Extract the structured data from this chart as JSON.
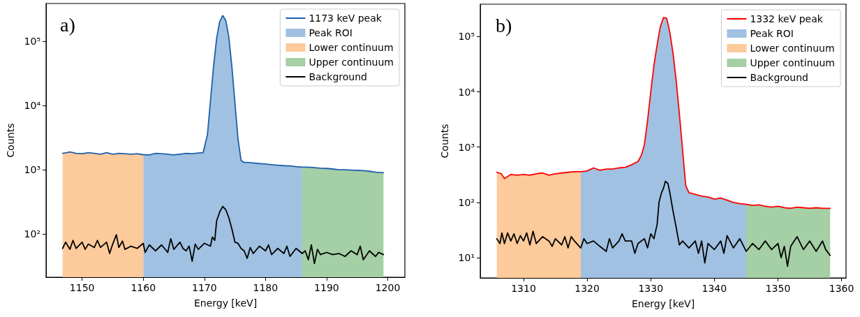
{
  "chart_data": [
    {
      "type": "line",
      "xlabel": "Energy [keV]",
      "ylabel": "Counts",
      "annotations": [
        "a)"
      ],
      "log": "y",
      "legend": "top right",
      "marker": "none",
      "xlim": [
        1144.1,
        1202.8
      ],
      "xticks": [
        1150,
        1160,
        1170,
        1180,
        1190,
        1200
      ],
      "ylim": [
        21.4,
        385000
      ],
      "yticks": [
        {
          "value": 100,
          "label": "10²"
        },
        {
          "value": 1000,
          "label": "10³"
        },
        {
          "value": 10000,
          "label": "10⁴"
        },
        {
          "value": 100000,
          "label": "10⁵"
        }
      ],
      "series": [
        {
          "name": "1173 keV peak",
          "type": "line",
          "color": "#1f5fac",
          "x": [
            1146.8,
            1147.5,
            1148,
            1149,
            1150,
            1151,
            1152,
            1153,
            1154,
            1155,
            1156,
            1157,
            1158,
            1159,
            1160,
            1161,
            1162,
            1163,
            1164,
            1165,
            1166,
            1167,
            1168,
            1169,
            1169.8,
            1170.5,
            1171,
            1171.5,
            1172,
            1172.5,
            1173,
            1173.5,
            1174,
            1174.5,
            1175,
            1175.5,
            1176,
            1176.5,
            1177,
            1178,
            1179,
            1180,
            1181,
            1182,
            1183,
            1184,
            1185,
            1186,
            1187,
            1188,
            1189,
            1190,
            1191,
            1192,
            1193,
            1194,
            1195,
            1196,
            1197,
            1198,
            1199.3
          ],
          "values": [
            1800,
            1850,
            1900,
            1800,
            1780,
            1850,
            1800,
            1750,
            1850,
            1750,
            1800,
            1780,
            1750,
            1780,
            1720,
            1700,
            1800,
            1780,
            1750,
            1700,
            1750,
            1800,
            1780,
            1820,
            1850,
            3500,
            12000,
            40000,
            110000,
            200000,
            250000,
            210000,
            115000,
            40000,
            11000,
            3000,
            1400,
            1300,
            1300,
            1280,
            1250,
            1230,
            1200,
            1180,
            1160,
            1150,
            1120,
            1100,
            1100,
            1080,
            1060,
            1050,
            1030,
            1000,
            1000,
            990,
            980,
            970,
            950,
            920,
            900
          ]
        },
        {
          "name": "Peak ROI",
          "type": "area",
          "color": "#a0c1e1",
          "x": [
            1160,
            1161,
            1162,
            1163,
            1164,
            1165,
            1166,
            1167,
            1168,
            1169,
            1169.8,
            1170.5,
            1171,
            1171.5,
            1172,
            1172.5,
            1173,
            1173.5,
            1174,
            1174.5,
            1175,
            1175.5,
            1176,
            1176.5,
            1177,
            1178,
            1179,
            1180,
            1181,
            1182,
            1183,
            1184,
            1185,
            1186
          ],
          "values": [
            1720,
            1700,
            1800,
            1780,
            1750,
            1700,
            1750,
            1800,
            1780,
            1820,
            1850,
            3500,
            12000,
            40000,
            110000,
            200000,
            250000,
            210000,
            115000,
            40000,
            11000,
            3000,
            1400,
            1300,
            1300,
            1280,
            1250,
            1230,
            1200,
            1180,
            1160,
            1150,
            1120,
            1100
          ]
        },
        {
          "name": "Lower continuum",
          "type": "area",
          "color": "#fdca9b",
          "x": [
            1146.8,
            1147.5,
            1148,
            1149,
            1150,
            1151,
            1152,
            1153,
            1154,
            1155,
            1156,
            1157,
            1158,
            1159,
            1160
          ],
          "values": [
            1800,
            1850,
            1900,
            1800,
            1780,
            1850,
            1800,
            1750,
            1850,
            1750,
            1800,
            1780,
            1750,
            1780,
            1720
          ]
        },
        {
          "name": "Upper continuum",
          "type": "area",
          "color": "#a5cfa5",
          "x": [
            1186,
            1187,
            1188,
            1189,
            1190,
            1191,
            1192,
            1193,
            1194,
            1195,
            1196,
            1197,
            1198,
            1199.3
          ],
          "values": [
            1100,
            1100,
            1080,
            1060,
            1050,
            1030,
            1000,
            1000,
            990,
            980,
            970,
            950,
            920,
            900
          ]
        },
        {
          "name": "Background",
          "type": "line",
          "color": "#000000",
          "x": [
            1146.8,
            1147.3,
            1148,
            1148.5,
            1149,
            1150,
            1150.5,
            1151,
            1152,
            1152.5,
            1153,
            1154,
            1154.5,
            1155,
            1155.6,
            1156,
            1156.6,
            1157,
            1158,
            1159,
            1160,
            1160.3,
            1161,
            1162,
            1163,
            1164,
            1164.5,
            1165,
            1166,
            1166.5,
            1167,
            1167.5,
            1168,
            1168.5,
            1169,
            1170,
            1171,
            1171.3,
            1171.7,
            1172,
            1172.5,
            1173,
            1173.5,
            1174,
            1174.5,
            1175,
            1175.5,
            1176,
            1176.5,
            1177,
            1177.5,
            1178,
            1179,
            1180,
            1180.5,
            1181,
            1182,
            1183,
            1183.5,
            1184,
            1185,
            1186,
            1186.5,
            1187,
            1187.5,
            1188,
            1188.5,
            1189,
            1190,
            1191,
            1192,
            1193,
            1194,
            1195,
            1195.5,
            1196,
            1197,
            1198,
            1198.5,
            1199.3
          ],
          "values": [
            60,
            75,
            58,
            80,
            60,
            75,
            58,
            70,
            62,
            80,
            62,
            75,
            50,
            70,
            98,
            62,
            78,
            58,
            65,
            60,
            72,
            52,
            68,
            55,
            68,
            52,
            85,
            58,
            75,
            60,
            55,
            65,
            38,
            70,
            58,
            72,
            65,
            90,
            80,
            160,
            220,
            270,
            240,
            180,
            120,
            75,
            72,
            60,
            55,
            42,
            62,
            50,
            65,
            55,
            68,
            48,
            60,
            50,
            65,
            45,
            60,
            50,
            55,
            40,
            68,
            35,
            58,
            48,
            52,
            48,
            50,
            45,
            55,
            48,
            65,
            40,
            55,
            45,
            52,
            48
          ]
        }
      ]
    },
    {
      "type": "line",
      "xlabel": "Energy [keV]",
      "ylabel": "Counts",
      "annotations": [
        "b)"
      ],
      "log": "y",
      "legend": "top right",
      "marker": "none",
      "xlim": [
        1303.2,
        1360.7
      ],
      "xticks": [
        1310,
        1320,
        1330,
        1340,
        1350,
        1360
      ],
      "ylim": [
        4.3,
        385000
      ],
      "yticks": [
        {
          "value": 10,
          "label": "10¹"
        },
        {
          "value": 100,
          "label": "10²"
        },
        {
          "value": 1000,
          "label": "10³"
        },
        {
          "value": 10000,
          "label": "10⁴"
        },
        {
          "value": 100000,
          "label": "10⁵"
        }
      ],
      "series": [
        {
          "name": "1332 keV peak",
          "type": "line",
          "color": "#ff0000",
          "x": [
            1305.8,
            1306.5,
            1307,
            1308,
            1309,
            1310,
            1311,
            1312,
            1313,
            1314,
            1315,
            1316,
            1317,
            1318,
            1319,
            1320,
            1321,
            1322,
            1323,
            1324,
            1325,
            1326,
            1327,
            1328,
            1328.5,
            1329,
            1329.5,
            1330,
            1330.5,
            1331,
            1331.5,
            1332,
            1332.5,
            1333,
            1333.5,
            1334,
            1334.5,
            1335,
            1335.5,
            1336,
            1337,
            1338,
            1339,
            1340,
            1341,
            1342,
            1343,
            1344,
            1345,
            1346,
            1347,
            1348,
            1349,
            1350,
            1351,
            1352,
            1353,
            1354,
            1355,
            1356,
            1357,
            1358.2
          ],
          "values": [
            350,
            330,
            270,
            320,
            310,
            320,
            310,
            330,
            340,
            310,
            330,
            340,
            350,
            360,
            360,
            370,
            420,
            380,
            400,
            400,
            420,
            430,
            480,
            550,
            700,
            1100,
            3000,
            10000,
            30000,
            70000,
            150000,
            220000,
            215000,
            120000,
            50000,
            16000,
            4000,
            900,
            200,
            150,
            140,
            130,
            125,
            115,
            120,
            110,
            100,
            95,
            92,
            88,
            90,
            85,
            82,
            85,
            80,
            78,
            82,
            80,
            78,
            80,
            78,
            78
          ]
        },
        {
          "name": "Peak ROI",
          "type": "area",
          "color": "#a0c1e1",
          "x": [
            1319,
            1320,
            1321,
            1322,
            1323,
            1324,
            1325,
            1326,
            1327,
            1328,
            1328.5,
            1329,
            1329.5,
            1330,
            1330.5,
            1331,
            1331.5,
            1332,
            1332.5,
            1333,
            1333.5,
            1334,
            1334.5,
            1335,
            1335.5,
            1336,
            1337,
            1338,
            1339,
            1340,
            1341,
            1342,
            1343,
            1344,
            1345
          ],
          "values": [
            360,
            370,
            420,
            380,
            400,
            400,
            420,
            430,
            480,
            550,
            700,
            1100,
            3000,
            10000,
            30000,
            70000,
            150000,
            220000,
            215000,
            120000,
            50000,
            16000,
            4000,
            900,
            200,
            150,
            140,
            130,
            125,
            115,
            120,
            110,
            100,
            95,
            92
          ]
        },
        {
          "name": "Lower continuum",
          "type": "area",
          "color": "#fdca9b",
          "x": [
            1305.8,
            1306.5,
            1307,
            1308,
            1309,
            1310,
            1311,
            1312,
            1313,
            1314,
            1315,
            1316,
            1317,
            1318,
            1319
          ],
          "values": [
            350,
            330,
            270,
            320,
            310,
            320,
            310,
            330,
            340,
            310,
            330,
            340,
            350,
            360,
            360
          ]
        },
        {
          "name": "Upper continuum",
          "type": "area",
          "color": "#a5cfa5",
          "x": [
            1345,
            1346,
            1347,
            1348,
            1349,
            1350,
            1351,
            1352,
            1353,
            1354,
            1355,
            1356,
            1357,
            1358.2
          ],
          "values": [
            92,
            88,
            90,
            85,
            82,
            85,
            80,
            78,
            82,
            80,
            78,
            80,
            78,
            78
          ]
        },
        {
          "name": "Background",
          "type": "line",
          "color": "#000000",
          "x": [
            1305.8,
            1306.3,
            1306.6,
            1307,
            1307.5,
            1308,
            1308.5,
            1309,
            1309.5,
            1310,
            1310.5,
            1311,
            1311.5,
            1312,
            1313,
            1314,
            1314.5,
            1315,
            1316,
            1316.5,
            1317,
            1317.5,
            1318,
            1319,
            1319.5,
            1320,
            1321,
            1322,
            1323,
            1323.5,
            1324,
            1325,
            1325.5,
            1326,
            1327,
            1327.5,
            1328,
            1329,
            1329.5,
            1330,
            1330.5,
            1331,
            1331.3,
            1331.7,
            1332,
            1332.3,
            1332.7,
            1333,
            1333.5,
            1334,
            1334.5,
            1335,
            1336,
            1337,
            1337.5,
            1338,
            1338.5,
            1339,
            1340,
            1341,
            1341.5,
            1342,
            1343,
            1344,
            1345,
            1346,
            1347,
            1348,
            1349,
            1350,
            1350.5,
            1351,
            1351.5,
            1352,
            1353,
            1354,
            1355,
            1356,
            1357,
            1357.5,
            1358.2
          ],
          "values": [
            22,
            18,
            28,
            18,
            28,
            20,
            27,
            18,
            25,
            20,
            28,
            17,
            30,
            18,
            24,
            20,
            16,
            22,
            17,
            24,
            15,
            24,
            20,
            15,
            22,
            18,
            20,
            16,
            13,
            22,
            15,
            20,
            27,
            20,
            20,
            12,
            18,
            22,
            15,
            27,
            22,
            40,
            100,
            150,
            180,
            240,
            220,
            150,
            70,
            35,
            17,
            20,
            15,
            20,
            12,
            20,
            8,
            18,
            14,
            20,
            12,
            25,
            15,
            22,
            13,
            18,
            14,
            20,
            14,
            18,
            10,
            16,
            7,
            16,
            24,
            14,
            20,
            13,
            20,
            14,
            11
          ]
        }
      ]
    }
  ]
}
